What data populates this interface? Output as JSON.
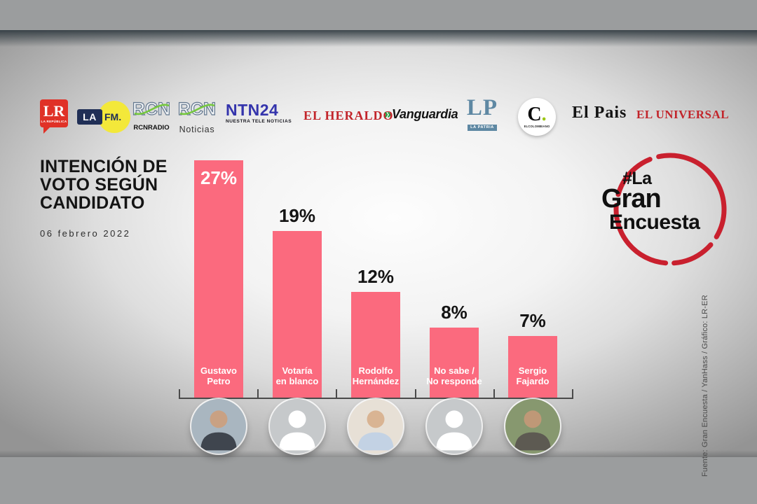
{
  "colors": {
    "bar": "#fb6a7e",
    "accent_red": "#c9202e",
    "axis": "#4a4a4a"
  },
  "logos": {
    "lr": {
      "main": "LR",
      "sub": "LA REPÚBLICA"
    },
    "lafm": {
      "la": "LA",
      "fm": "FM."
    },
    "rcn_radio": {
      "mark": "RCN",
      "sub": "RCNRADIO"
    },
    "rcn_noticias": {
      "mark": "RCN",
      "sub": "Noticias"
    },
    "ntn24": {
      "main": "NTN24",
      "sub": "NUESTRA TELE NOTICIAS"
    },
    "el_heraldo": {
      "main": "EL HERALDO"
    },
    "vanguardia": {
      "chevrons": "»",
      "main": "Vanguardia"
    },
    "la_patria": {
      "main": "LP",
      "sub": "LA PATRIA"
    },
    "el_colombiano": {
      "main": "C",
      "dot": ".",
      "sub": "ELCOLOMBIANO"
    },
    "el_pais": {
      "main": "El Pais"
    },
    "el_universal": {
      "main": "EL UNIVERSAL"
    }
  },
  "title": {
    "text": "INTENCIÓN DE\nVOTO SEGÚN\nCANDIDATO",
    "date": "06 febrero 2022"
  },
  "brand": {
    "line1": "#La",
    "line2": "Gran",
    "line3": "Encuesta"
  },
  "source": {
    "text": "Fuente: Gran Encuesta / YanHass / Gráfico: LR-ER"
  },
  "chart_data": {
    "type": "bar",
    "title": "INTENCIÓN DE VOTO SEGÚN CANDIDATO",
    "subtitle": "06 febrero 2022",
    "categories": [
      "Gustavo Petro",
      "Votaría en blanco",
      "Rodolfo Hernández",
      "No sabe / No responde",
      "Sergio Fajardo"
    ],
    "category_lines": [
      [
        "Gustavo",
        "Petro"
      ],
      [
        "Votaría",
        "en blanco"
      ],
      [
        "Rodolfo",
        "Hernández"
      ],
      [
        "No sabe /",
        "No responde"
      ],
      [
        "Sergio",
        "Fajardo"
      ]
    ],
    "values": [
      27,
      19,
      12,
      8,
      7
    ],
    "value_labels": [
      "27%",
      "19%",
      "12%",
      "8%",
      "7%"
    ],
    "bar_color": "#fb6a7e",
    "xlabel": "",
    "ylabel": "",
    "ylim": [
      0,
      28
    ],
    "grid": false,
    "legend": "none",
    "value_label_style": "first inside bar (white), others above bars (black)",
    "avatars": [
      {
        "kind": "photo",
        "person": "Gustavo Petro",
        "bg": "#a9b6c0",
        "head": "#c9a183",
        "body": "#3f454e"
      },
      {
        "kind": "placeholder",
        "person": "",
        "bg": "#c6c9cb",
        "head": "#ffffff",
        "body": "#ffffff"
      },
      {
        "kind": "photo",
        "person": "Rodolfo Hernández",
        "bg": "#e7e0d6",
        "head": "#d9b493",
        "body": "#c3d2e4"
      },
      {
        "kind": "placeholder",
        "person": "",
        "bg": "#c6c9cb",
        "head": "#ffffff",
        "body": "#ffffff"
      },
      {
        "kind": "photo",
        "person": "Sergio Fajardo",
        "bg": "#87986f",
        "head": "#bf9877",
        "body": "#5d5a52"
      }
    ]
  }
}
